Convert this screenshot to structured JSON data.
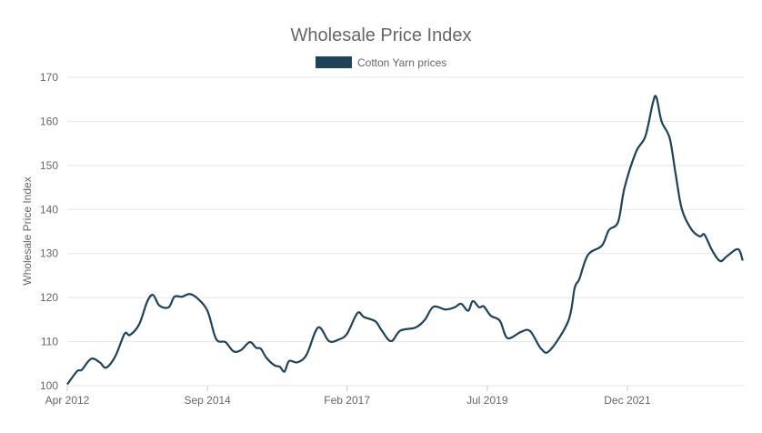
{
  "chart_data": {
    "type": "line",
    "title": "Wholesale Price Index",
    "xlabel": "",
    "ylabel": "Wholesale Price Index",
    "ylim": [
      100,
      170
    ],
    "yticks": [
      100,
      110,
      120,
      130,
      140,
      150,
      160,
      170
    ],
    "xlim": [
      2012.25,
      2023.93
    ],
    "xticks": [
      {
        "value": 2012.25,
        "label": "Apr 2012"
      },
      {
        "value": 2014.67,
        "label": "Sep 2014"
      },
      {
        "value": 2017.08,
        "label": "Feb 2017"
      },
      {
        "value": 2019.5,
        "label": "Jul 2019"
      },
      {
        "value": 2021.92,
        "label": "Dec 2021"
      }
    ],
    "grid": true,
    "legend_position": "top-center",
    "series": [
      {
        "name": "Cotton Yarn prices",
        "color": "#1d4259",
        "x": [
          2012.25,
          2012.42,
          2012.5,
          2012.66,
          2012.81,
          2012.92,
          2013.08,
          2013.24,
          2013.33,
          2013.49,
          2013.63,
          2013.73,
          2013.84,
          2014.0,
          2014.1,
          2014.23,
          2014.36,
          2014.49,
          2014.67,
          2014.82,
          2014.98,
          2015.12,
          2015.25,
          2015.4,
          2015.51,
          2015.59,
          2015.69,
          2015.83,
          2015.92,
          2016.0,
          2016.08,
          2016.22,
          2016.38,
          2016.58,
          2016.77,
          2016.94,
          2017.08,
          2017.26,
          2017.37,
          2017.57,
          2017.68,
          2017.84,
          2018.0,
          2018.26,
          2018.42,
          2018.57,
          2018.78,
          2018.94,
          2019.05,
          2019.17,
          2019.25,
          2019.36,
          2019.44,
          2019.56,
          2019.72,
          2019.85,
          2020.08,
          2020.24,
          2020.43,
          2020.58,
          2020.9,
          2021.01,
          2021.09,
          2021.24,
          2021.48,
          2021.6,
          2021.76,
          2021.87,
          2022.07,
          2022.23,
          2022.36,
          2022.42,
          2022.51,
          2022.65,
          2022.75,
          2022.86,
          2023.02,
          2023.17,
          2023.25,
          2023.38,
          2023.52,
          2023.64,
          2023.83,
          2023.91
        ],
        "values": [
          100.3,
          103.3,
          103.6,
          106.1,
          105.3,
          104.1,
          106.7,
          111.8,
          111.5,
          113.9,
          119.1,
          120.6,
          118.2,
          117.8,
          120.2,
          120.2,
          120.8,
          119.9,
          117.0,
          110.6,
          109.9,
          107.8,
          108.1,
          109.9,
          108.6,
          108.4,
          106.3,
          104.6,
          104.3,
          103.2,
          105.6,
          105.3,
          107.0,
          113.2,
          110.1,
          110.5,
          111.8,
          116.5,
          115.6,
          114.6,
          112.5,
          110.1,
          112.5,
          113.2,
          114.9,
          117.9,
          117.3,
          117.8,
          118.6,
          117.0,
          119.2,
          117.8,
          118.0,
          115.9,
          114.7,
          110.8,
          112.2,
          112.4,
          108.4,
          108.0,
          114.7,
          122.2,
          124.2,
          129.7,
          131.8,
          135.3,
          137.2,
          144.9,
          153.1,
          156.6,
          164.2,
          165.5,
          160.0,
          156.2,
          148.3,
          140.1,
          135.6,
          133.9,
          134.3,
          130.8,
          128.3,
          129.4,
          131.0,
          128.4
        ]
      }
    ]
  }
}
